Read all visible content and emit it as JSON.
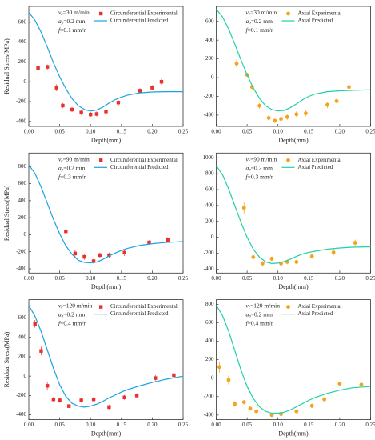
{
  "chart_data": [
    {
      "type": "line",
      "x_label": "Depth(mm)",
      "y_label": "Residual Stress(MPa)",
      "annotations": [
        {
          "var": "v",
          "sub": "c",
          "text": "=30 m/min"
        },
        {
          "var": "a",
          "sub": "p",
          "text": "=0.2 mm"
        },
        {
          "var": "f",
          "text": "=0.1 mm/r"
        }
      ],
      "xlim": [
        0,
        0.25
      ],
      "xticks": [
        {
          "value": 0,
          "label": "0.00"
        },
        {
          "value": 0.05,
          "label": "0.05"
        },
        {
          "value": 0.1,
          "label": "0.10"
        },
        {
          "value": 0.15,
          "label": "0.15"
        },
        {
          "value": 0.2,
          "label": "0.20"
        },
        {
          "value": 0.25,
          "label": "0.25"
        }
      ],
      "ylim": [
        -450,
        760
      ],
      "yticks": [
        -400,
        -200,
        0,
        200,
        400,
        600
      ],
      "series": [
        {
          "name": "Circumferential Experimental",
          "color": "#e8312f",
          "marker": "square",
          "x": [
            0.015,
            0.03,
            0.045,
            0.055,
            0.07,
            0.085,
            0.1,
            0.11,
            0.125,
            0.145,
            0.18,
            0.2,
            0.215
          ],
          "values": [
            140,
            150,
            -60,
            -240,
            -280,
            -310,
            -330,
            -325,
            -300,
            -210,
            -90,
            -60,
            0
          ],
          "errors": [
            25,
            25,
            35,
            25,
            25,
            25,
            25,
            25,
            30,
            30,
            25,
            25,
            30
          ]
        },
        {
          "name": "Circumferential Predicted",
          "color": "#1aa3df",
          "marker": null,
          "x": [
            0,
            0.01,
            0.02,
            0.03,
            0.04,
            0.05,
            0.06,
            0.07,
            0.08,
            0.09,
            0.1,
            0.11,
            0.12,
            0.13,
            0.14,
            0.15,
            0.16,
            0.18,
            0.2,
            0.22,
            0.25
          ],
          "values": [
            700,
            620,
            500,
            350,
            190,
            50,
            -70,
            -170,
            -240,
            -280,
            -295,
            -285,
            -255,
            -215,
            -180,
            -155,
            -135,
            -112,
            -103,
            -100,
            -100
          ]
        }
      ]
    },
    {
      "type": "line",
      "x_label": "Depth(mm)",
      "annotations": [
        {
          "var": "v",
          "sub": "c",
          "text": "=30 m/min"
        },
        {
          "var": "a",
          "sub": "p",
          "text": "=0.2 mm"
        },
        {
          "var": "f",
          "text": "=0.1 mm/r"
        }
      ],
      "xlim": [
        0,
        0.25
      ],
      "xticks": [
        {
          "value": 0,
          "label": "0.00"
        },
        {
          "value": 0.05,
          "label": "0.05"
        },
        {
          "value": 0.1,
          "label": "0.10"
        },
        {
          "value": 0.15,
          "label": "0.15"
        },
        {
          "value": 0.2,
          "label": "0.20"
        },
        {
          "value": 0.25,
          "label": "0.25"
        }
      ],
      "ylim": [
        -520,
        760
      ],
      "yticks": [
        -400,
        -200,
        0,
        200,
        400,
        600
      ],
      "series": [
        {
          "name": "Axial Experimental",
          "color": "#f5a31a",
          "marker": "circle",
          "x": [
            0.033,
            0.05,
            0.058,
            0.07,
            0.085,
            0.095,
            0.105,
            0.115,
            0.13,
            0.145,
            0.18,
            0.195,
            0.215
          ],
          "values": [
            150,
            30,
            -100,
            -300,
            -430,
            -460,
            -440,
            -420,
            -390,
            -380,
            -290,
            -250,
            -100
          ],
          "errors": [
            40,
            20,
            25,
            30,
            30,
            25,
            30,
            30,
            30,
            30,
            35,
            25,
            25
          ]
        },
        {
          "name": "Axial Predicted",
          "color": "#1fd0a8",
          "marker": null,
          "x": [
            0,
            0.01,
            0.02,
            0.03,
            0.04,
            0.05,
            0.06,
            0.07,
            0.08,
            0.09,
            0.1,
            0.11,
            0.12,
            0.13,
            0.14,
            0.15,
            0.16,
            0.18,
            0.2,
            0.22,
            0.25
          ],
          "values": [
            730,
            650,
            520,
            360,
            190,
            30,
            -110,
            -220,
            -300,
            -340,
            -355,
            -350,
            -320,
            -280,
            -235,
            -200,
            -175,
            -150,
            -140,
            -135,
            -130
          ]
        }
      ]
    },
    {
      "type": "line",
      "x_label": "Depth(mm)",
      "y_label": "Residual Stress(MPa)",
      "annotations": [
        {
          "var": "v",
          "sub": "c",
          "text": "=90 m/min"
        },
        {
          "var": "a",
          "sub": "p",
          "text": "=0.2 mm"
        },
        {
          "var": "f",
          "text": "=0.3 mm/r"
        }
      ],
      "xlim": [
        0,
        0.25
      ],
      "xticks": [
        {
          "value": 0,
          "label": "0.00"
        },
        {
          "value": 0.05,
          "label": "0.05"
        },
        {
          "value": 0.1,
          "label": "0.10"
        },
        {
          "value": 0.15,
          "label": "0.15"
        },
        {
          "value": 0.2,
          "label": "0.20"
        },
        {
          "value": 0.25,
          "label": "0.25"
        }
      ],
      "ylim": [
        -450,
        960
      ],
      "yticks": [
        -400,
        -200,
        0,
        200,
        400,
        600,
        800
      ],
      "series": [
        {
          "name": "Circumferential Experimental",
          "color": "#e8312f",
          "marker": "square",
          "x": [
            0.06,
            0.075,
            0.09,
            0.105,
            0.115,
            0.13,
            0.155,
            0.195,
            0.225
          ],
          "values": [
            40,
            -220,
            -260,
            -310,
            -240,
            -240,
            -210,
            -90,
            -60
          ],
          "errors": [
            30,
            40,
            35,
            30,
            30,
            30,
            40,
            25,
            30
          ]
        },
        {
          "name": "Circumferential Predicted",
          "color": "#1aa3df",
          "marker": null,
          "x": [
            0,
            0.01,
            0.02,
            0.03,
            0.04,
            0.05,
            0.06,
            0.07,
            0.08,
            0.09,
            0.1,
            0.11,
            0.12,
            0.13,
            0.14,
            0.15,
            0.16,
            0.18,
            0.2,
            0.22,
            0.25
          ],
          "values": [
            820,
            720,
            560,
            370,
            180,
            10,
            -130,
            -230,
            -300,
            -325,
            -330,
            -320,
            -290,
            -250,
            -215,
            -185,
            -160,
            -125,
            -105,
            -92,
            -80
          ]
        }
      ]
    },
    {
      "type": "line",
      "x_label": "Depth(mm)",
      "annotations": [
        {
          "var": "v",
          "sub": "c",
          "text": "=90 m/min"
        },
        {
          "var": "a",
          "sub": "p",
          "text": "=0.2 mm"
        },
        {
          "var": "f",
          "text": "=0.3 mm/r"
        }
      ],
      "xlim": [
        0,
        0.25
      ],
      "xticks": [
        {
          "value": 0,
          "label": "0.00"
        },
        {
          "value": 0.05,
          "label": "0.05"
        },
        {
          "value": 0.1,
          "label": "0.10"
        },
        {
          "value": 0.15,
          "label": "0.15"
        },
        {
          "value": 0.2,
          "label": "0.20"
        },
        {
          "value": 0.25,
          "label": "0.25"
        }
      ],
      "ylim": [
        -450,
        1060
      ],
      "yticks": [
        -400,
        -200,
        0,
        200,
        400,
        600,
        800,
        1000
      ],
      "series": [
        {
          "name": "Axial Experimental",
          "color": "#f5a31a",
          "marker": "circle",
          "x": [
            0.045,
            0.06,
            0.075,
            0.09,
            0.105,
            0.115,
            0.13,
            0.155,
            0.19,
            0.225
          ],
          "values": [
            370,
            -250,
            -330,
            -270,
            -330,
            -310,
            -310,
            -240,
            -190,
            -70
          ],
          "errors": [
            70,
            30,
            30,
            30,
            30,
            30,
            25,
            30,
            40,
            40
          ]
        },
        {
          "name": "Axial Predicted",
          "color": "#1fd0a8",
          "marker": null,
          "x": [
            0,
            0.01,
            0.02,
            0.03,
            0.04,
            0.05,
            0.06,
            0.07,
            0.08,
            0.09,
            0.1,
            0.11,
            0.12,
            0.13,
            0.14,
            0.15,
            0.16,
            0.18,
            0.2,
            0.22,
            0.25
          ],
          "values": [
            900,
            790,
            610,
            400,
            190,
            0,
            -150,
            -250,
            -310,
            -330,
            -325,
            -305,
            -275,
            -240,
            -210,
            -190,
            -175,
            -150,
            -135,
            -125,
            -120
          ]
        }
      ]
    },
    {
      "type": "line",
      "x_label": "Depth(mm)",
      "y_label": "Residual Stress(MPa)",
      "annotations": [
        {
          "var": "v",
          "sub": "c",
          "text": "=120 m/min"
        },
        {
          "var": "a",
          "sub": "p",
          "text": "=0.2 mm"
        },
        {
          "var": "f",
          "text": "=0.4 mm/r"
        }
      ],
      "xlim": [
        0,
        0.25
      ],
      "xticks": [
        {
          "value": 0,
          "label": "0.00"
        },
        {
          "value": 0.05,
          "label": "0.05"
        },
        {
          "value": 0.1,
          "label": "0.10"
        },
        {
          "value": 0.15,
          "label": "0.15"
        },
        {
          "value": 0.2,
          "label": "0.20"
        },
        {
          "value": 0.25,
          "label": "0.25"
        }
      ],
      "ylim": [
        -450,
        790
      ],
      "yticks": [
        -400,
        -200,
        0,
        200,
        400,
        600
      ],
      "series": [
        {
          "name": "Circumferential Experimental",
          "color": "#e8312f",
          "marker": "square",
          "x": [
            0.01,
            0.02,
            0.03,
            0.04,
            0.05,
            0.065,
            0.085,
            0.105,
            0.13,
            0.155,
            0.175,
            0.205,
            0.235
          ],
          "values": [
            540,
            260,
            -100,
            -240,
            -250,
            -310,
            -250,
            -240,
            -320,
            -220,
            -200,
            -20,
            10
          ],
          "errors": [
            40,
            45,
            40,
            25,
            25,
            20,
            25,
            25,
            25,
            25,
            25,
            30,
            25
          ]
        },
        {
          "name": "Circumferential Predicted",
          "color": "#1aa3df",
          "marker": null,
          "x": [
            0,
            0.01,
            0.02,
            0.03,
            0.04,
            0.05,
            0.06,
            0.07,
            0.08,
            0.09,
            0.1,
            0.11,
            0.12,
            0.13,
            0.14,
            0.15,
            0.16,
            0.18,
            0.2,
            0.22,
            0.25
          ],
          "values": [
            730,
            620,
            460,
            270,
            80,
            -90,
            -210,
            -280,
            -310,
            -320,
            -310,
            -290,
            -260,
            -225,
            -195,
            -165,
            -140,
            -100,
            -65,
            -35,
            0
          ]
        }
      ]
    },
    {
      "type": "line",
      "x_label": "Depth(mm)",
      "annotations": [
        {
          "var": "v",
          "sub": "c",
          "text": "=120 m/min"
        },
        {
          "var": "a",
          "sub": "p",
          "text": "=0.2 mm"
        },
        {
          "var": "f",
          "text": "=0.4 mm/r"
        }
      ],
      "xlim": [
        0,
        0.25
      ],
      "xticks": [
        {
          "value": 0,
          "label": "0.00"
        },
        {
          "value": 0.05,
          "label": "0.05"
        },
        {
          "value": 0.1,
          "label": "0.10"
        },
        {
          "value": 0.15,
          "label": "0.15"
        },
        {
          "value": 0.2,
          "label": "0.20"
        },
        {
          "value": 0.25,
          "label": "0.25"
        }
      ],
      "ylim": [
        -450,
        850
      ],
      "yticks": [
        -400,
        -200,
        0,
        200,
        400,
        600,
        800
      ],
      "series": [
        {
          "name": "Axial Experimental",
          "color": "#f5a31a",
          "marker": "circle",
          "x": [
            0.005,
            0.02,
            0.03,
            0.045,
            0.055,
            0.065,
            0.09,
            0.105,
            0.13,
            0.155,
            0.175,
            0.2,
            0.235
          ],
          "values": [
            120,
            -20,
            -280,
            -260,
            -330,
            -360,
            -400,
            -390,
            -360,
            -300,
            -230,
            -60,
            -70
          ],
          "errors": [
            60,
            50,
            30,
            25,
            25,
            20,
            20,
            20,
            20,
            25,
            25,
            20,
            20
          ]
        },
        {
          "name": "Axial Predicted",
          "color": "#1fd0a8",
          "marker": null,
          "x": [
            0,
            0.01,
            0.02,
            0.03,
            0.04,
            0.05,
            0.06,
            0.07,
            0.08,
            0.09,
            0.1,
            0.11,
            0.12,
            0.13,
            0.14,
            0.15,
            0.16,
            0.18,
            0.2,
            0.22,
            0.25
          ],
          "values": [
            790,
            680,
            510,
            300,
            90,
            -90,
            -220,
            -310,
            -360,
            -380,
            -380,
            -370,
            -345,
            -310,
            -275,
            -240,
            -210,
            -165,
            -130,
            -105,
            -90
          ]
        }
      ]
    }
  ]
}
